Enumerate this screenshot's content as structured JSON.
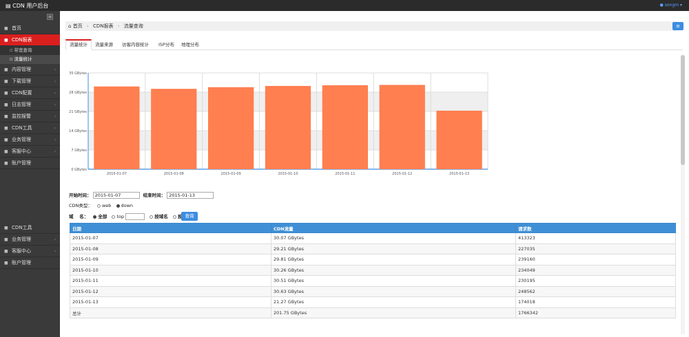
{
  "app": {
    "title": "CDN 用户后台",
    "user": "songm",
    "brand_icon": "building-icon"
  },
  "sidebar": {
    "collapse_icon": "menu-icon",
    "items": [
      {
        "label": "首页",
        "icon": "home-icon",
        "active": false
      },
      {
        "label": "CDN报表",
        "icon": "chart-icon",
        "active": true
      },
      {
        "label": "带宽查询",
        "sub": true,
        "active": false
      },
      {
        "label": "流量统计",
        "sub": true,
        "active": true
      },
      {
        "label": "内容管理",
        "icon": "list-icon"
      },
      {
        "label": "下载管理",
        "icon": "download-icon"
      },
      {
        "label": "CDN配置",
        "icon": "gear-icon"
      },
      {
        "label": "日志管理",
        "icon": "log-icon"
      },
      {
        "label": "监控报警",
        "icon": "monitor-icon"
      },
      {
        "label": "CDN工具",
        "icon": "wrench-icon"
      },
      {
        "label": "业务管理",
        "icon": "grid-icon"
      },
      {
        "label": "客服中心",
        "icon": "service-icon"
      },
      {
        "label": "账户管理",
        "icon": "user-icon"
      }
    ],
    "items2": [
      {
        "label": "CDN工具",
        "icon": "wrench-icon"
      },
      {
        "label": "业务管理",
        "icon": "grid-icon"
      },
      {
        "label": "客服中心",
        "icon": "service-icon"
      },
      {
        "label": "账户管理",
        "icon": "user-icon"
      }
    ]
  },
  "breadcrumb": {
    "home": "首页",
    "section": "CDN报表",
    "current": "流量查询"
  },
  "tabs": [
    "流量统计",
    "流量来源",
    "访客内容统计",
    "ISP分布",
    "地理分布"
  ],
  "chart_data": {
    "type": "bar",
    "categories": [
      "2015-01-07",
      "2015-01-08",
      "2015-01-09",
      "2015-01-10",
      "2015-01-11",
      "2015-01-12",
      "2015-01-13"
    ],
    "values": [
      30.07,
      29.21,
      29.81,
      30.26,
      30.51,
      30.63,
      21.27
    ],
    "yticks": [
      "0 GBytes",
      "7 GBytes",
      "14 GBytes",
      "21 GBytes",
      "28 GBytes",
      "35 GBytes"
    ],
    "ylim": [
      0,
      35
    ],
    "bar_color": "#ff7f50",
    "grid": true
  },
  "filters": {
    "start_label": "开始时间：",
    "start_value": "2015-01-07",
    "end_label": "结束时间：",
    "end_value": "2015-01-13",
    "cdn_type_label": "CDN类型：",
    "cdn_types": [
      "web",
      "down"
    ],
    "domain_label": "域 　名：",
    "domain_opts": [
      "全部",
      "top",
      "按域名",
      "按频道"
    ],
    "query_button": "查询"
  },
  "table": {
    "headers": [
      "日期",
      "CDN流量",
      "请求数"
    ],
    "rows": [
      [
        "2015-01-07",
        "30.07 GBytes",
        "413323"
      ],
      [
        "2015-01-08",
        "29.21 GBytes",
        "227035"
      ],
      [
        "2015-01-09",
        "29.81 GBytes",
        "239160"
      ],
      [
        "2015-01-10",
        "30.26 GBytes",
        "234049"
      ],
      [
        "2015-01-11",
        "30.51 GBytes",
        "230195"
      ],
      [
        "2015-01-12",
        "30.63 GBytes",
        "248562"
      ],
      [
        "2015-01-13",
        "21.27 GBytes",
        "174018"
      ],
      [
        "总计",
        "201.75 GBytes",
        "1766342"
      ]
    ]
  }
}
